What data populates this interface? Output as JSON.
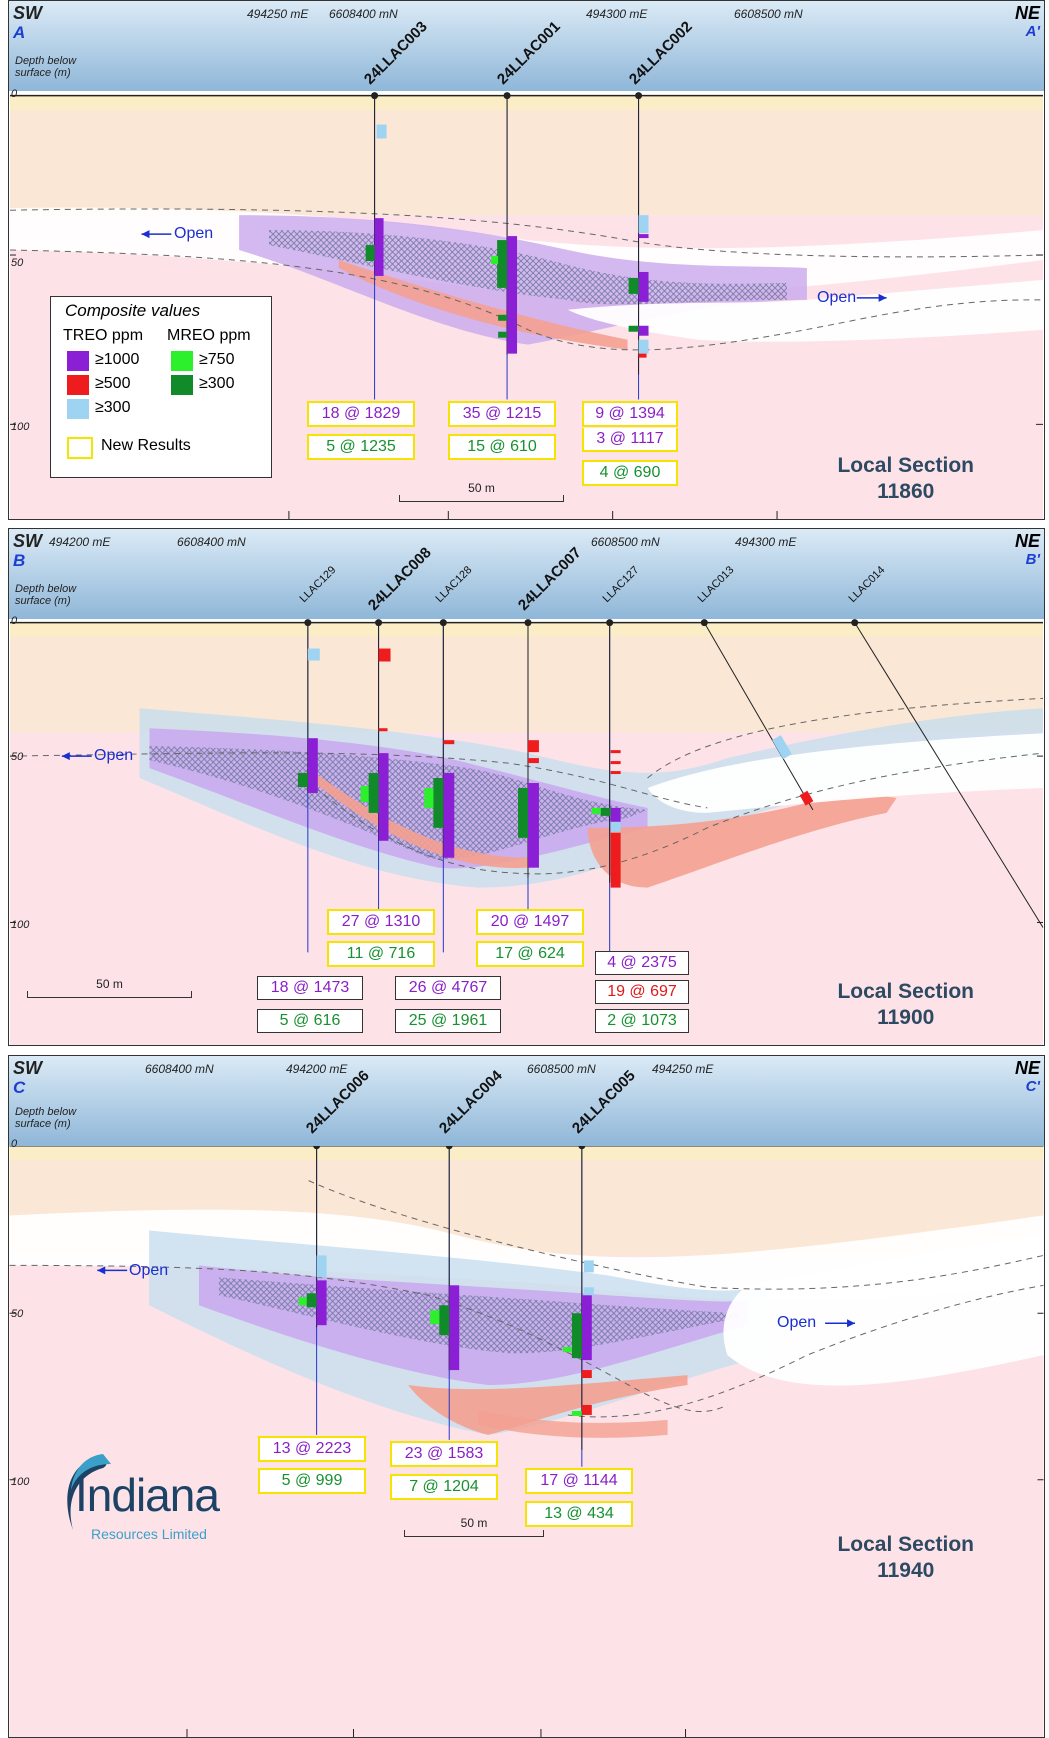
{
  "sections": [
    {
      "id": "A",
      "sw": "SW",
      "sw_letter": "A",
      "ne": "NE",
      "ne_letter": "A'",
      "depth_label": [
        "Depth below",
        "surface (m)"
      ],
      "coords": [
        "494250 mE",
        "6608400 mN",
        "494300 mE",
        "6608500 mN"
      ],
      "holes": [
        "24LLAC003",
        "24LLAC001",
        "24LLAC002"
      ],
      "ticks": [
        "0",
        "50",
        "100"
      ],
      "open_left": "Open",
      "open_right": "Open",
      "section_name": [
        "Local Section",
        "11860"
      ],
      "scale": "50 m",
      "results": [
        [
          "18 @ 1829",
          "5 @ 1235"
        ],
        [
          "35 @ 1215",
          "15 @ 610"
        ],
        [
          "9 @ 1394",
          "3 @ 1117",
          "4 @ 690"
        ]
      ]
    },
    {
      "id": "B",
      "sw": "SW",
      "sw_letter": "B",
      "ne": "NE",
      "ne_letter": "B'",
      "depth_label": [
        "Depth below",
        "surface (m)"
      ],
      "coords": [
        "494200 mE",
        "6608400 mN",
        "6608500 mN",
        "494300 mE"
      ],
      "holes": [
        "LLAC129",
        "24LLAC008",
        "LLAC128",
        "24LLAC007",
        "LLAC127",
        "LLAC013",
        "LLAC014"
      ],
      "ticks": [
        "0",
        "50",
        "100"
      ],
      "open_left": "Open",
      "section_name": [
        "Local Section",
        "11900"
      ],
      "scale": "50 m",
      "results": [
        [
          "27 @ 1310",
          "11 @ 716"
        ],
        [
          "20 @ 1497",
          "17 @ 624"
        ],
        [
          "18 @ 1473",
          "5 @ 616"
        ],
        [
          "26 @ 4767",
          "25 @ 1961"
        ],
        [
          "4 @ 2375",
          "19 @ 697",
          "2 @ 1073"
        ]
      ]
    },
    {
      "id": "C",
      "sw": "SW",
      "sw_letter": "C",
      "ne": "NE",
      "ne_letter": "C'",
      "depth_label": [
        "Depth below",
        "surface (m)"
      ],
      "coords": [
        "6608400 mN",
        "494200 mE",
        "6608500 mN",
        "494250 mE"
      ],
      "holes": [
        "24LLAC006",
        "24LLAC004",
        "24LLAC005"
      ],
      "ticks": [
        "0",
        "50",
        "100"
      ],
      "open_left": "Open",
      "open_right": "Open",
      "section_name": [
        "Local Section",
        "11940"
      ],
      "scale": "50 m",
      "results": [
        [
          "13 @ 2223",
          "5 @ 999"
        ],
        [
          "23 @ 1583",
          "7 @ 1204"
        ],
        [
          "17 @ 1144",
          "13 @ 434"
        ]
      ]
    }
  ],
  "legend": {
    "title": "Composite values",
    "treo_header": "TREO ppm",
    "mreo_header": "MREO ppm",
    "treo": [
      {
        "label": "≥1000",
        "color": "#8b1fd6"
      },
      {
        "label": "≥500",
        "color": "#ee1c1c"
      },
      {
        "label": "≥300",
        "color": "#9fd3f2"
      }
    ],
    "mreo": [
      {
        "label": "≥750",
        "color": "#2cf02c"
      },
      {
        "label": "≥300",
        "color": "#118a2a"
      }
    ],
    "new_results": "New Results"
  },
  "logo": {
    "name": "Indiana",
    "sub": "Resources Limited"
  },
  "colors": {
    "purple": "#8a1fc8",
    "green": "#17912f",
    "red": "#e01818",
    "highlight": "#f5e300"
  }
}
